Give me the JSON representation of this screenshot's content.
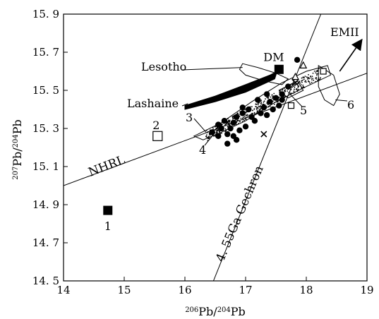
{
  "chart_data": {
    "type": "scatter",
    "title": "",
    "xlabel": "206Pb/204Pb",
    "ylabel": "207Pb/204Pb",
    "xlim": [
      14,
      19
    ],
    "ylim": [
      14.5,
      15.9
    ],
    "xticks": [
      14,
      15,
      16,
      17,
      18,
      19
    ],
    "xtick_labels": [
      "14",
      "15",
      "16",
      "17",
      "18",
      "19"
    ],
    "yticks": [
      14.5,
      14.7,
      14.9,
      15.1,
      15.3,
      15.5,
      15.7,
      15.9
    ],
    "ytick_labels": [
      "14. 5",
      "14. 7",
      "14. 9",
      "15. 1",
      "15. 3",
      "15. 5",
      "15. 7",
      "15. 9"
    ],
    "grid": false,
    "reference_lines": [
      {
        "label": "NHRL",
        "points": [
          [
            14.0,
            15.0
          ],
          [
            19.0,
            15.59
          ]
        ]
      },
      {
        "label": "4. 55Ga Gechron",
        "points": [
          [
            16.47,
            14.5
          ],
          [
            18.24,
            15.9
          ]
        ]
      }
    ],
    "fields": [
      {
        "label": "Lesotho"
      },
      {
        "label": "Lashaine"
      },
      {
        "label": "DM"
      },
      {
        "label": "EMII"
      }
    ],
    "end_members": [
      {
        "label": "1",
        "marker": "filled-square",
        "x": 14.73,
        "y": 14.87
      },
      {
        "label": "2",
        "marker": "open-square",
        "x": 15.55,
        "y": 15.26
      },
      {
        "label": "DM",
        "marker": "filled-square",
        "x": 17.55,
        "y": 15.61
      }
    ],
    "region_labels": [
      "3",
      "4",
      "5",
      "6"
    ],
    "series": [
      {
        "marker": "filled-circle",
        "x": [
          16.45,
          16.55,
          16.6,
          16.7,
          16.8,
          16.85,
          16.9,
          17.0,
          17.1,
          17.15,
          17.25,
          17.3,
          17.35,
          17.4,
          17.45,
          17.5,
          17.55,
          17.6,
          17.7,
          16.55,
          16.65,
          16.75,
          16.85,
          16.95,
          17.05,
          17.2,
          16.7,
          16.8,
          16.95,
          17.85,
          17.35,
          17.6
        ],
        "y": [
          15.28,
          15.26,
          15.3,
          15.27,
          15.33,
          15.24,
          15.29,
          15.31,
          15.36,
          15.34,
          15.38,
          15.41,
          15.37,
          15.44,
          15.4,
          15.46,
          15.42,
          15.48,
          15.52,
          15.32,
          15.34,
          15.3,
          15.36,
          15.38,
          15.4,
          15.45,
          15.22,
          15.26,
          15.41,
          15.66,
          15.48,
          15.45
        ]
      },
      {
        "marker": "cross",
        "x": [
          17.3,
          16.55,
          17.82,
          16.7
        ],
        "y": [
          15.27,
          15.31,
          15.54,
          15.33
        ]
      },
      {
        "marker": "open-triangle",
        "x": [
          17.95,
          17.82
        ],
        "y": [
          15.63,
          15.57
        ]
      },
      {
        "marker": "small-open-square",
        "x": [
          17.75,
          18.28
        ],
        "y": [
          15.42,
          15.6
        ]
      }
    ]
  }
}
